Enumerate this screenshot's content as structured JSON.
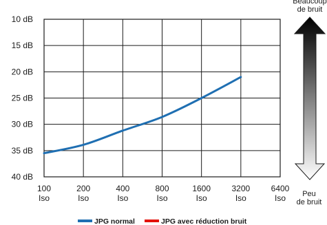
{
  "chart_data": {
    "type": "line",
    "title": "",
    "xlabel": "",
    "ylabel": "",
    "x": [
      "100 Iso",
      "200 Iso",
      "400 Iso",
      "800 Iso",
      "1600 Iso",
      "3200 Iso",
      "6400 Iso"
    ],
    "x_ticks": [
      {
        "value": "100",
        "unit": "Iso"
      },
      {
        "value": "200",
        "unit": "Iso"
      },
      {
        "value": "400",
        "unit": "Iso"
      },
      {
        "value": "800",
        "unit": "Iso"
      },
      {
        "value": "1600",
        "unit": "Iso"
      },
      {
        "value": "3200",
        "unit": "Iso"
      },
      {
        "value": "6400",
        "unit": "Iso"
      }
    ],
    "y_ticks": [
      "10 dB",
      "15 dB",
      "20 dB",
      "25 dB",
      "30 dB",
      "35 dB",
      "40 dB"
    ],
    "ylim": [
      10,
      40
    ],
    "y_inverted": true,
    "grid": true,
    "series": [
      {
        "name": "JPG normal",
        "color": "#1f6fb2",
        "values": [
          35.5,
          33.9,
          31.2,
          28.6,
          25.0,
          21.0,
          null
        ]
      },
      {
        "name": "JPG avec réduction bruit",
        "color": "#e3120b",
        "values": [
          null,
          null,
          null,
          null,
          null,
          null,
          null
        ]
      }
    ],
    "legend": {
      "position": "bottom-center"
    },
    "scale_arrow": {
      "top_label_line1": "Beaucoup",
      "top_label_line2": "de bruit",
      "bottom_label_line1": "Peu",
      "bottom_label_line2": "de bruit"
    }
  }
}
